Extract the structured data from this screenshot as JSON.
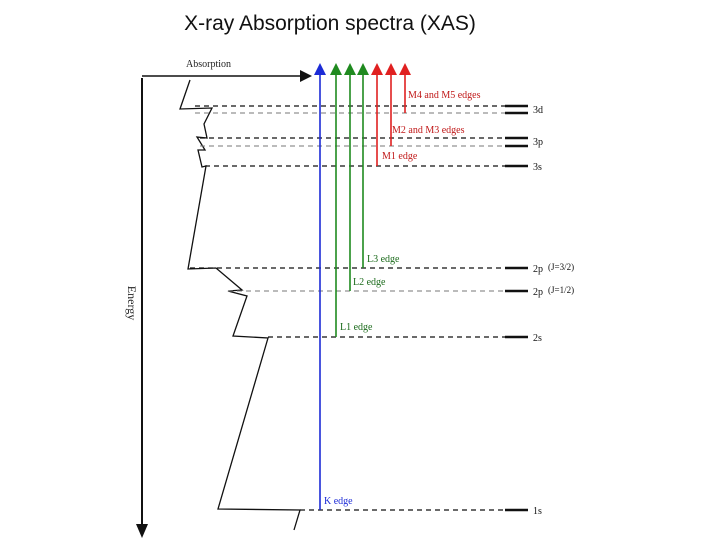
{
  "title": "X-ray Absorption spectra (XAS)",
  "axes": {
    "absorption_label": "Absorption",
    "energy_label": "Energy"
  },
  "levels": {
    "3d": "3d",
    "3p": "3p",
    "3s": "3s",
    "2p_32": "2p",
    "2p_32_j": "(J=3/2)",
    "2p_12": "2p",
    "2p_12_j": "(J=1/2)",
    "2s": "2s",
    "1s": "1s"
  },
  "edges": {
    "m45": "M4 and M5 edges",
    "m23": "M2 and M3 edges",
    "m1": "M1 edge",
    "l3": "L3 edge",
    "l2": "L2 edge",
    "l1": "L1 edge",
    "k": "K edge"
  },
  "colors": {
    "K": "#1c2bd6",
    "L": "#1f8a1f",
    "M": "#e02020",
    "lines": "#111111",
    "dashed_light": "#7a7a7a"
  }
}
